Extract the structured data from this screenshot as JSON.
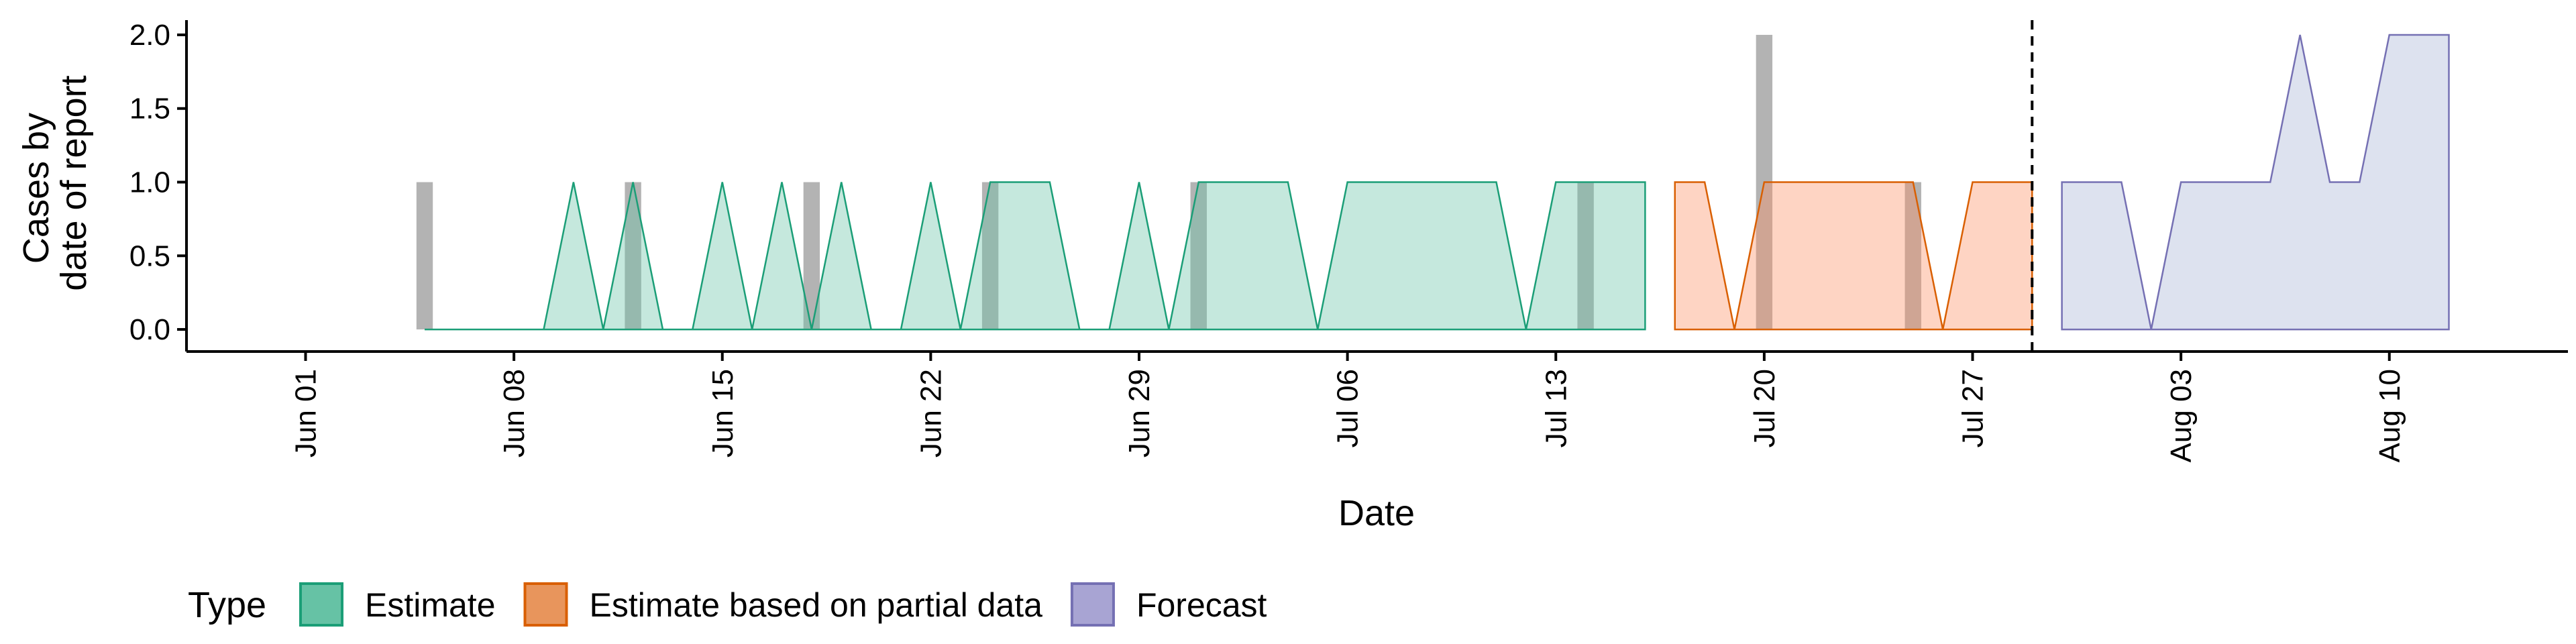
{
  "chart_data": {
    "type": "area",
    "title": "",
    "xlabel": "Date",
    "ylabel_lines": [
      "Cases by",
      "date of report"
    ],
    "x_range": [
      "2020-05-28",
      "2020-08-16"
    ],
    "ylim": [
      -0.15,
      2.1
    ],
    "y_ticks": [
      "0.0",
      "0.5",
      "1.0",
      "1.5",
      "2.0"
    ],
    "x_ticks": [
      {
        "date": "2020-06-01",
        "label": "Jun 01"
      },
      {
        "date": "2020-06-08",
        "label": "Jun 08"
      },
      {
        "date": "2020-06-15",
        "label": "Jun 15"
      },
      {
        "date": "2020-06-22",
        "label": "Jun 22"
      },
      {
        "date": "2020-06-29",
        "label": "Jun 29"
      },
      {
        "date": "2020-07-06",
        "label": "Jul 06"
      },
      {
        "date": "2020-07-13",
        "label": "Jul 13"
      },
      {
        "date": "2020-07-20",
        "label": "Jul 20"
      },
      {
        "date": "2020-07-27",
        "label": "Jul 27"
      },
      {
        "date": "2020-08-03",
        "label": "Aug 03"
      },
      {
        "date": "2020-08-10",
        "label": "Aug 10"
      }
    ],
    "grid": false,
    "legend_position": "bottom-left",
    "legend_title": "Type",
    "forecast_date": "2020-07-29",
    "observed_cases": {
      "color": "#b3b3b3",
      "dates": [
        "2020-06-05",
        "2020-06-12",
        "2020-06-18",
        "2020-06-24",
        "2020-07-01",
        "2020-07-14",
        "2020-07-20",
        "2020-07-25"
      ],
      "values": [
        1,
        1,
        1,
        1,
        1,
        1,
        2,
        1
      ]
    },
    "series": [
      {
        "name": "Estimate",
        "fill": "#66c2a5",
        "fill_opacity": 0.38,
        "stroke": "#1b9e77",
        "legend_fill": "#66c2a5",
        "dates": [
          "2020-06-05",
          "2020-06-06",
          "2020-06-07",
          "2020-06-08",
          "2020-06-09",
          "2020-06-10",
          "2020-06-11",
          "2020-06-12",
          "2020-06-13",
          "2020-06-14",
          "2020-06-15",
          "2020-06-16",
          "2020-06-17",
          "2020-06-18",
          "2020-06-19",
          "2020-06-20",
          "2020-06-21",
          "2020-06-22",
          "2020-06-23",
          "2020-06-24",
          "2020-06-25",
          "2020-06-26",
          "2020-06-27",
          "2020-06-28",
          "2020-06-29",
          "2020-06-30",
          "2020-07-01",
          "2020-07-02",
          "2020-07-03",
          "2020-07-04",
          "2020-07-05",
          "2020-07-06",
          "2020-07-07",
          "2020-07-08",
          "2020-07-09",
          "2020-07-10",
          "2020-07-11",
          "2020-07-12",
          "2020-07-13",
          "2020-07-14",
          "2020-07-15",
          "2020-07-16"
        ],
        "values": [
          0,
          0,
          0,
          0,
          0,
          1,
          0,
          1,
          0,
          0,
          1,
          0,
          1,
          0,
          1,
          0,
          0,
          1,
          0,
          1,
          1,
          1,
          0,
          0,
          1,
          0,
          1,
          1,
          1,
          1,
          0,
          1,
          1,
          1,
          1,
          1,
          1,
          0,
          1,
          1,
          1,
          1
        ]
      },
      {
        "name": "Estimate based on partial data",
        "fill": "#fc8d62",
        "fill_opacity": 0.38,
        "stroke": "#d95f02",
        "legend_fill": "#e8955c",
        "dates": [
          "2020-07-17",
          "2020-07-18",
          "2020-07-19",
          "2020-07-20",
          "2020-07-21",
          "2020-07-22",
          "2020-07-23",
          "2020-07-24",
          "2020-07-25",
          "2020-07-26",
          "2020-07-27",
          "2020-07-28",
          "2020-07-29"
        ],
        "values": [
          1,
          1,
          0,
          1,
          1,
          1,
          1,
          1,
          1,
          0,
          1,
          1,
          1
        ]
      },
      {
        "name": "Forecast",
        "fill": "#8da0cb",
        "fill_opacity": 0.3,
        "stroke": "#7570b3",
        "legend_fill": "#a8a4d3",
        "dates": [
          "2020-07-30",
          "2020-07-31",
          "2020-08-01",
          "2020-08-02",
          "2020-08-03",
          "2020-08-04",
          "2020-08-05",
          "2020-08-06",
          "2020-08-07",
          "2020-08-08",
          "2020-08-09",
          "2020-08-10",
          "2020-08-11",
          "2020-08-12"
        ],
        "values": [
          1,
          1,
          1,
          0,
          1,
          1,
          1,
          1,
          2,
          1,
          1,
          2,
          2,
          2
        ]
      }
    ]
  }
}
